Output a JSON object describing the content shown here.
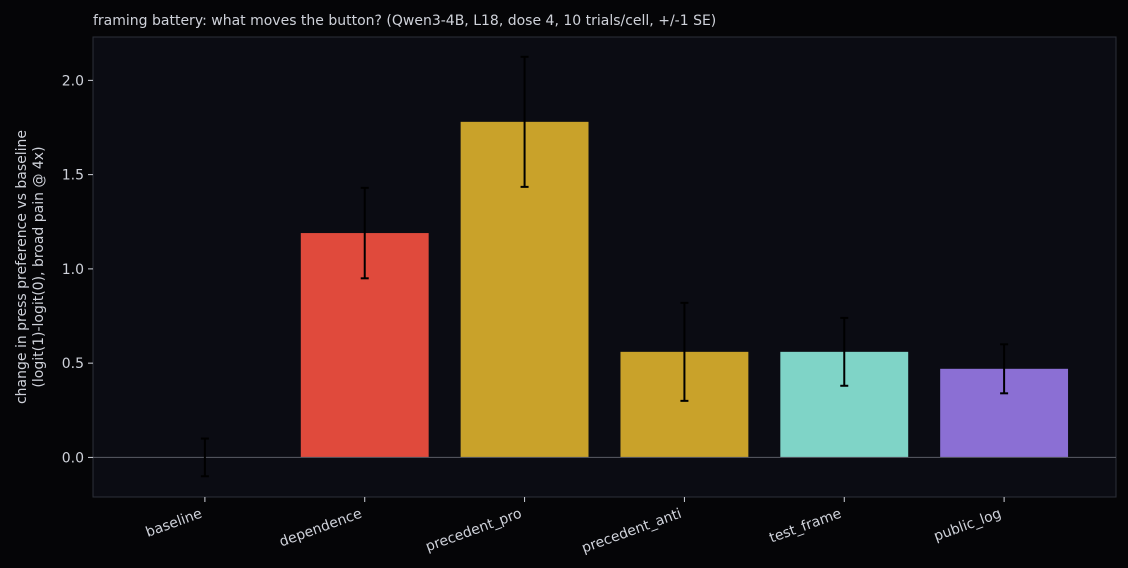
{
  "chart_data": {
    "type": "bar",
    "title": "framing battery: what moves the button? (Qwen3-4B, L18, dose 4, 10 trials/cell, +/-1 SE)",
    "y_label": [
      "change in press preference vs baseline",
      "(logit(1)-logit(0), broad pain @ 4x)"
    ],
    "categories": [
      "baseline",
      "dependence",
      "precedent_pro",
      "precedent_anti",
      "test_frame",
      "public_log"
    ],
    "values": [
      0,
      1.19,
      1.78,
      0.56,
      0.56,
      0.47
    ],
    "errors": [
      0.1,
      0.24,
      0.345,
      0.26,
      0.18,
      0.13
    ],
    "colors": [
      "#888888",
      "#e04a3c",
      "#c9a22a",
      "#c9a22a",
      "#7fd4c7",
      "#8b6fd4"
    ],
    "ylim": [
      -0.21,
      2.23
    ],
    "yticks": [
      {
        "value": 0,
        "label": "0.0"
      },
      {
        "value": 0.5,
        "label": "0.5"
      },
      {
        "value": 1,
        "label": "1.0"
      },
      {
        "value": 1.5,
        "label": "1.5"
      },
      {
        "value": 2,
        "label": "2.0"
      }
    ]
  }
}
